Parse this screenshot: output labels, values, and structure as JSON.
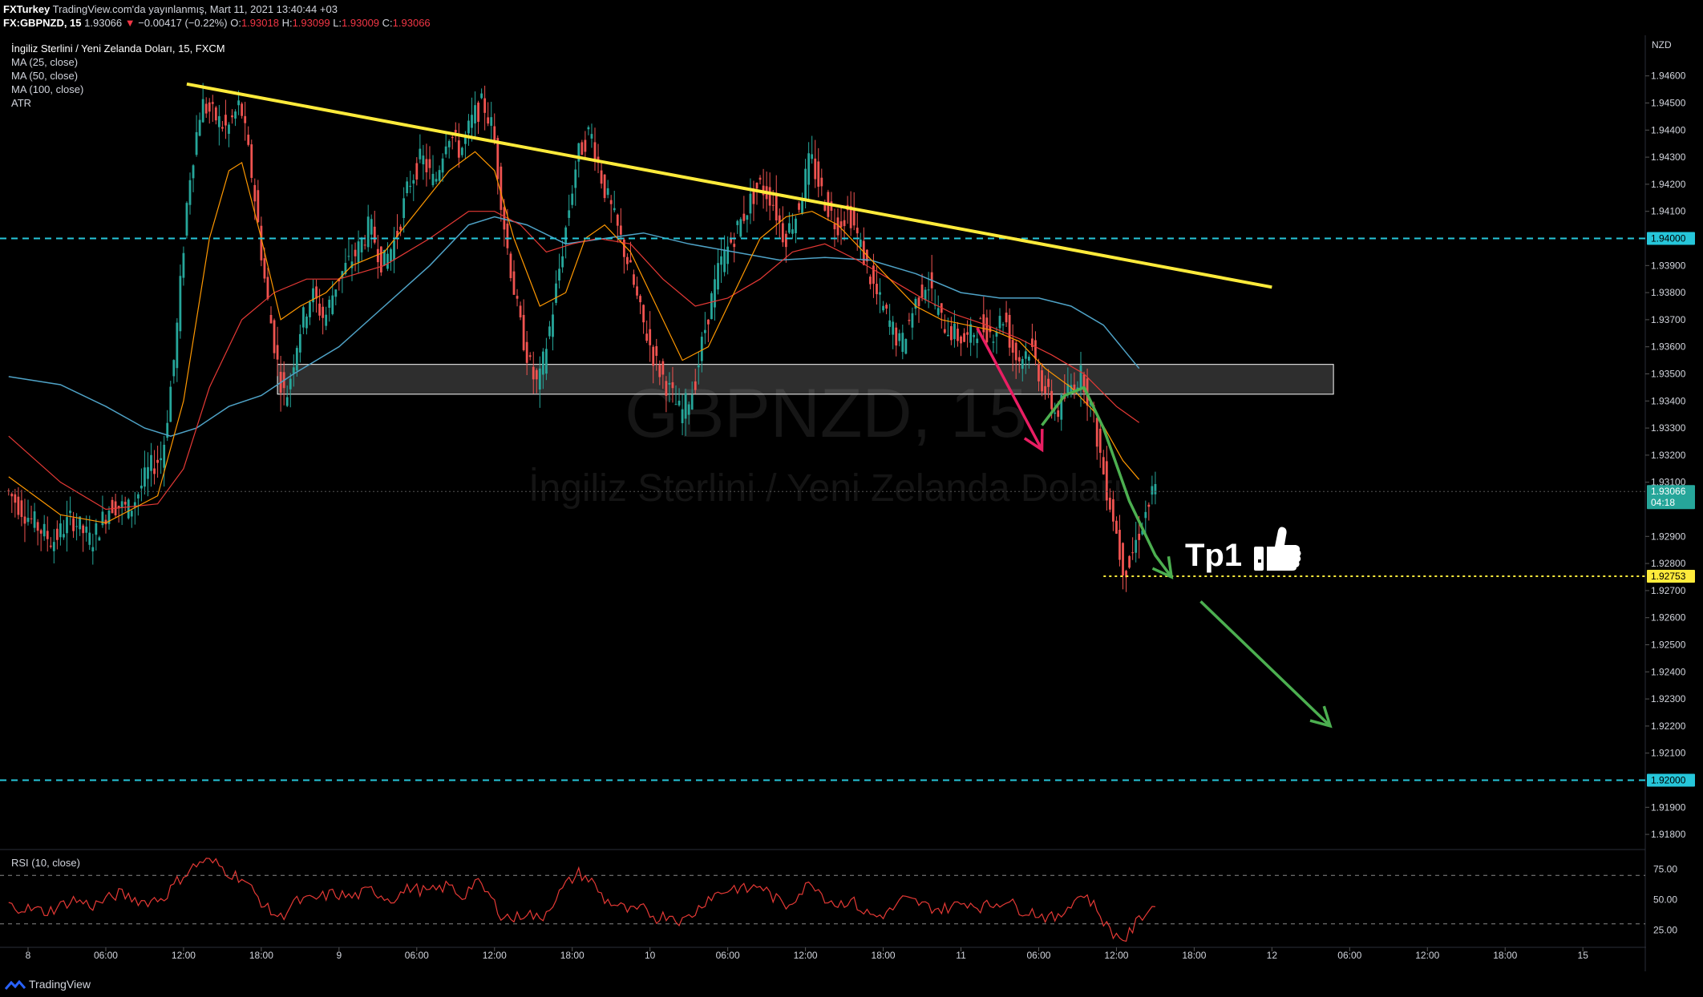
{
  "header": {
    "author": "FXTurkey",
    "published": "TradingView.com'da yayınlanmış, Mart 11, 2021 13:40:44 +03",
    "symbol": "FX:GBPNZD, 15",
    "last": "1.93066",
    "change": "−0.00417 (−0.22%)",
    "o_label": "O:",
    "o_val": "1.93018",
    "h_label": "H:",
    "h_val": "1.93099",
    "l_label": "L:",
    "l_val": "1.93009",
    "c_label": "C:",
    "c_val": "1.93066"
  },
  "legend": {
    "title": "İngiliz Sterlini / Yeni Zelanda Doları, 15, FXCM",
    "items": [
      "MA (25, close)",
      "MA (50, close)",
      "MA (100, close)",
      "ATR"
    ]
  },
  "watermark": {
    "symbol": "GBPNZD, 15",
    "name": "İngiliz Sterlini / Yeni Zelanda Doları"
  },
  "rsi_label": "RSI (10, close)",
  "annotation": {
    "tp_label": "Tp1",
    "thumb_icon": "thumbs-up-icon"
  },
  "footer": {
    "brand": "TradingView"
  },
  "colors": {
    "up": "#26a69a",
    "down": "#ef5350",
    "ma25": "#ff9800",
    "ma50": "#e53935",
    "ma100": "#4fa3c7",
    "trendline": "#ffeb3b",
    "level": "#26c6da",
    "tp_line": "#ffeb3b",
    "arrow_green": "#4caf50",
    "arrow_pink": "#e91e63",
    "rsi": "#e53935",
    "zone": "#ffffff"
  },
  "chart_data": {
    "type": "candlestick",
    "currency": "NZD",
    "ylim": [
      1.9175,
      1.9475
    ],
    "y_ticks": [
      "1.94600",
      "1.94500",
      "1.94400",
      "1.94300",
      "1.94200",
      "1.94100",
      "1.93900",
      "1.93800",
      "1.93700",
      "1.93600",
      "1.93500",
      "1.93400",
      "1.93300",
      "1.93200",
      "1.93100",
      "1.92900",
      "1.92800",
      "1.92700",
      "1.92600",
      "1.92500",
      "1.92400",
      "1.92300",
      "1.92200",
      "1.92100",
      "1.91900",
      "1.91800"
    ],
    "x_ticks": [
      {
        "label": "8",
        "t": 0
      },
      {
        "label": "06:00",
        "t": 24
      },
      {
        "label": "12:00",
        "t": 48
      },
      {
        "label": "18:00",
        "t": 72
      },
      {
        "label": "9",
        "t": 96
      },
      {
        "label": "06:00",
        "t": 120
      },
      {
        "label": "12:00",
        "t": 144
      },
      {
        "label": "18:00",
        "t": 168
      },
      {
        "label": "10",
        "t": 192
      },
      {
        "label": "06:00",
        "t": 216
      },
      {
        "label": "12:00",
        "t": 240
      },
      {
        "label": "18:00",
        "t": 264
      },
      {
        "label": "11",
        "t": 288
      },
      {
        "label": "06:00",
        "t": 312
      },
      {
        "label": "12:00",
        "t": 336
      },
      {
        "label": "18:00",
        "t": 360
      },
      {
        "label": "12",
        "t": 384
      },
      {
        "label": "06:00",
        "t": 408
      },
      {
        "label": "12:00",
        "t": 432
      },
      {
        "label": "18:00",
        "t": 456
      },
      {
        "label": "15",
        "t": 480
      }
    ],
    "price_path": [
      [
        -6,
        1.9307
      ],
      [
        0,
        1.9298
      ],
      [
        8,
        1.9288
      ],
      [
        14,
        1.9297
      ],
      [
        20,
        1.9288
      ],
      [
        26,
        1.9302
      ],
      [
        32,
        1.93
      ],
      [
        38,
        1.9315
      ],
      [
        42,
        1.932
      ],
      [
        46,
        1.936
      ],
      [
        50,
        1.942
      ],
      [
        54,
        1.945
      ],
      [
        58,
        1.9445
      ],
      [
        62,
        1.944
      ],
      [
        66,
        1.945
      ],
      [
        70,
        1.942
      ],
      [
        74,
        1.938
      ],
      [
        78,
        1.935
      ],
      [
        80,
        1.934
      ],
      [
        84,
        1.9365
      ],
      [
        88,
        1.938
      ],
      [
        92,
        1.937
      ],
      [
        96,
        1.9385
      ],
      [
        102,
        1.9395
      ],
      [
        106,
        1.9405
      ],
      [
        110,
        1.939
      ],
      [
        114,
        1.94
      ],
      [
        118,
        1.942
      ],
      [
        122,
        1.943
      ],
      [
        126,
        1.942
      ],
      [
        130,
        1.944
      ],
      [
        134,
        1.9432
      ],
      [
        138,
        1.9445
      ],
      [
        141,
        1.945
      ],
      [
        144,
        1.944
      ],
      [
        148,
        1.94
      ],
      [
        152,
        1.937
      ],
      [
        156,
        1.935
      ],
      [
        158,
        1.9345
      ],
      [
        162,
        1.937
      ],
      [
        166,
        1.94
      ],
      [
        170,
        1.943
      ],
      [
        174,
        1.944
      ],
      [
        178,
        1.942
      ],
      [
        182,
        1.9405
      ],
      [
        186,
        1.939
      ],
      [
        190,
        1.937
      ],
      [
        194,
        1.9355
      ],
      [
        198,
        1.9345
      ],
      [
        202,
        1.9335
      ],
      [
        206,
        1.9345
      ],
      [
        210,
        1.937
      ],
      [
        214,
        1.939
      ],
      [
        218,
        1.94
      ],
      [
        222,
        1.941
      ],
      [
        226,
        1.942
      ],
      [
        230,
        1.9415
      ],
      [
        234,
        1.94
      ],
      [
        238,
        1.941
      ],
      [
        242,
        1.943
      ],
      [
        246,
        1.9415
      ],
      [
        250,
        1.9405
      ],
      [
        254,
        1.941
      ],
      [
        258,
        1.9395
      ],
      [
        262,
        1.938
      ],
      [
        266,
        1.937
      ],
      [
        270,
        1.936
      ],
      [
        274,
        1.9375
      ],
      [
        278,
        1.9385
      ],
      [
        282,
        1.937
      ],
      [
        286,
        1.9365
      ],
      [
        290,
        1.9362
      ],
      [
        294,
        1.9368
      ],
      [
        298,
        1.9365
      ],
      [
        302,
        1.9372
      ],
      [
        304,
        1.936
      ],
      [
        306,
        1.9355
      ],
      [
        310,
        1.936
      ],
      [
        314,
        1.9345
      ],
      [
        318,
        1.9335
      ],
      [
        322,
        1.9345
      ],
      [
        326,
        1.935
      ],
      [
        330,
        1.933
      ],
      [
        333,
        1.931
      ],
      [
        336,
        1.9295
      ],
      [
        338,
        1.928
      ],
      [
        340,
        1.9278
      ],
      [
        343,
        1.929
      ],
      [
        346,
        1.93
      ],
      [
        348,
        1.9307
      ]
    ],
    "ma25": [
      [
        -6,
        1.9312
      ],
      [
        10,
        1.9298
      ],
      [
        24,
        1.9295
      ],
      [
        40,
        1.9305
      ],
      [
        48,
        1.934
      ],
      [
        56,
        1.94
      ],
      [
        62,
        1.9425
      ],
      [
        66,
        1.9428
      ],
      [
        72,
        1.94
      ],
      [
        78,
        1.937
      ],
      [
        84,
        1.9375
      ],
      [
        92,
        1.938
      ],
      [
        100,
        1.939
      ],
      [
        110,
        1.9395
      ],
      [
        120,
        1.941
      ],
      [
        130,
        1.9425
      ],
      [
        138,
        1.9432
      ],
      [
        144,
        1.9425
      ],
      [
        150,
        1.94
      ],
      [
        158,
        1.9375
      ],
      [
        166,
        1.938
      ],
      [
        172,
        1.94
      ],
      [
        178,
        1.9405
      ],
      [
        186,
        1.9395
      ],
      [
        194,
        1.9375
      ],
      [
        202,
        1.9355
      ],
      [
        210,
        1.936
      ],
      [
        218,
        1.938
      ],
      [
        226,
        1.94
      ],
      [
        234,
        1.9408
      ],
      [
        242,
        1.941
      ],
      [
        250,
        1.9405
      ],
      [
        258,
        1.9395
      ],
      [
        266,
        1.9385
      ],
      [
        274,
        1.9375
      ],
      [
        282,
        1.937
      ],
      [
        290,
        1.9368
      ],
      [
        298,
        1.9366
      ],
      [
        306,
        1.9362
      ],
      [
        314,
        1.9352
      ],
      [
        322,
        1.9345
      ],
      [
        330,
        1.9335
      ],
      [
        338,
        1.9318
      ],
      [
        343,
        1.9311
      ]
    ],
    "ma50": [
      [
        -6,
        1.9327
      ],
      [
        10,
        1.931
      ],
      [
        24,
        1.93
      ],
      [
        40,
        1.9302
      ],
      [
        48,
        1.9315
      ],
      [
        56,
        1.9345
      ],
      [
        66,
        1.937
      ],
      [
        76,
        1.938
      ],
      [
        86,
        1.9385
      ],
      [
        96,
        1.9385
      ],
      [
        110,
        1.939
      ],
      [
        124,
        1.94
      ],
      [
        136,
        1.941
      ],
      [
        144,
        1.941
      ],
      [
        152,
        1.9405
      ],
      [
        160,
        1.9395
      ],
      [
        168,
        1.9398
      ],
      [
        176,
        1.94
      ],
      [
        186,
        1.9398
      ],
      [
        196,
        1.9385
      ],
      [
        206,
        1.9375
      ],
      [
        216,
        1.9378
      ],
      [
        226,
        1.9385
      ],
      [
        236,
        1.9395
      ],
      [
        246,
        1.9398
      ],
      [
        256,
        1.9392
      ],
      [
        266,
        1.9385
      ],
      [
        276,
        1.9378
      ],
      [
        286,
        1.9372
      ],
      [
        296,
        1.9368
      ],
      [
        306,
        1.9363
      ],
      [
        316,
        1.9357
      ],
      [
        326,
        1.935
      ],
      [
        336,
        1.9338
      ],
      [
        343,
        1.9332
      ]
    ],
    "ma100": [
      [
        -6,
        1.9349
      ],
      [
        10,
        1.9346
      ],
      [
        24,
        1.9338
      ],
      [
        36,
        1.933
      ],
      [
        44,
        1.9327
      ],
      [
        52,
        1.933
      ],
      [
        62,
        1.9338
      ],
      [
        72,
        1.9342
      ],
      [
        82,
        1.935
      ],
      [
        96,
        1.936
      ],
      [
        110,
        1.9375
      ],
      [
        124,
        1.939
      ],
      [
        136,
        1.9405
      ],
      [
        144,
        1.9408
      ],
      [
        154,
        1.9405
      ],
      [
        166,
        1.9398
      ],
      [
        178,
        1.94
      ],
      [
        190,
        1.9402
      ],
      [
        204,
        1.9398
      ],
      [
        218,
        1.9395
      ],
      [
        232,
        1.9392
      ],
      [
        246,
        1.9393
      ],
      [
        260,
        1.9392
      ],
      [
        274,
        1.9387
      ],
      [
        288,
        1.938
      ],
      [
        300,
        1.9378
      ],
      [
        312,
        1.9378
      ],
      [
        322,
        1.9375
      ],
      [
        332,
        1.9368
      ],
      [
        343,
        1.9352
      ]
    ],
    "trendline": [
      [
        49,
        1.9457
      ],
      [
        384,
        1.9382
      ]
    ],
    "zone": {
      "t_start": 77,
      "t_end": 403,
      "top": 1.93535,
      "bottom": 1.93425
    },
    "levels": [
      {
        "price": 1.94,
        "label": "1.94000"
      },
      {
        "price": 1.92,
        "label": "1.92000"
      }
    ],
    "tp_level": {
      "price": 1.92753,
      "label": "1.92753",
      "t_start": 332,
      "t_end": 500
    },
    "current": {
      "price": 1.93066,
      "label": "1.93066",
      "countdown": "04:18"
    },
    "arrows": [
      {
        "color": "pink",
        "points": [
          [
            293,
            1.9367
          ],
          [
            313,
            1.9322
          ]
        ]
      },
      {
        "color": "green",
        "points": [
          [
            313,
            1.9331
          ],
          [
            320,
            1.9342
          ],
          [
            326,
            1.9345
          ],
          [
            332,
            1.933
          ],
          [
            340,
            1.9303
          ],
          [
            348,
            1.9283
          ],
          [
            353,
            1.9275
          ]
        ]
      },
      {
        "color": "green",
        "points": [
          [
            362,
            1.9266
          ],
          [
            402,
            1.922
          ]
        ]
      }
    ],
    "rsi": {
      "ylim": [
        12,
        90
      ],
      "y_ticks": [
        "75.00",
        "50.00",
        "25.00"
      ],
      "upper": 70,
      "lower": 30,
      "path": [
        [
          -6,
          45
        ],
        [
          6,
          40
        ],
        [
          14,
          50
        ],
        [
          20,
          45
        ],
        [
          28,
          55
        ],
        [
          36,
          48
        ],
        [
          42,
          52
        ],
        [
          46,
          65
        ],
        [
          50,
          75
        ],
        [
          54,
          82
        ],
        [
          58,
          80
        ],
        [
          62,
          72
        ],
        [
          66,
          68
        ],
        [
          70,
          55
        ],
        [
          74,
          42
        ],
        [
          78,
          35
        ],
        [
          82,
          48
        ],
        [
          88,
          50
        ],
        [
          94,
          55
        ],
        [
          100,
          52
        ],
        [
          106,
          58
        ],
        [
          112,
          50
        ],
        [
          118,
          60
        ],
        [
          124,
          56
        ],
        [
          130,
          62
        ],
        [
          134,
          52
        ],
        [
          138,
          65
        ],
        [
          142,
          55
        ],
        [
          146,
          38
        ],
        [
          150,
          34
        ],
        [
          154,
          40
        ],
        [
          158,
          33
        ],
        [
          162,
          48
        ],
        [
          166,
          62
        ],
        [
          170,
          72
        ],
        [
          174,
          65
        ],
        [
          178,
          50
        ],
        [
          182,
          45
        ],
        [
          186,
          40
        ],
        [
          190,
          42
        ],
        [
          194,
          35
        ],
        [
          198,
          38
        ],
        [
          202,
          32
        ],
        [
          206,
          40
        ],
        [
          210,
          52
        ],
        [
          214,
          56
        ],
        [
          218,
          60
        ],
        [
          222,
          58
        ],
        [
          226,
          62
        ],
        [
          230,
          52
        ],
        [
          234,
          45
        ],
        [
          238,
          55
        ],
        [
          242,
          65
        ],
        [
          246,
          52
        ],
        [
          250,
          46
        ],
        [
          254,
          50
        ],
        [
          258,
          40
        ],
        [
          262,
          36
        ],
        [
          266,
          40
        ],
        [
          270,
          50
        ],
        [
          274,
          48
        ],
        [
          278,
          44
        ],
        [
          282,
          42
        ],
        [
          286,
          45
        ],
        [
          290,
          48
        ],
        [
          294,
          44
        ],
        [
          298,
          46
        ],
        [
          302,
          50
        ],
        [
          306,
          42
        ],
        [
          310,
          40
        ],
        [
          314,
          36
        ],
        [
          318,
          34
        ],
        [
          322,
          48
        ],
        [
          326,
          55
        ],
        [
          330,
          42
        ],
        [
          333,
          28
        ],
        [
          336,
          20
        ],
        [
          339,
          18
        ],
        [
          342,
          30
        ],
        [
          345,
          40
        ],
        [
          348,
          45
        ]
      ]
    }
  }
}
